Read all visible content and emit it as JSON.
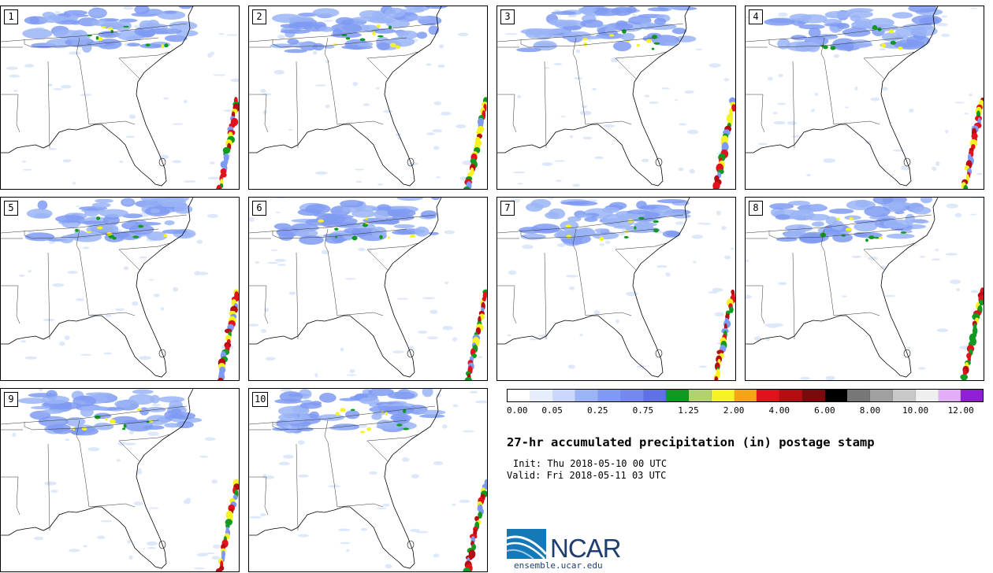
{
  "title": "27-hr accumulated precipitation (in) postage stamp",
  "init_text": "Init: Thu 2018-05-10 00 UTC",
  "valid_text": "Valid: Fri 2018-05-11 03 UTC",
  "members": [
    "1",
    "2",
    "3",
    "4",
    "5",
    "6",
    "7",
    "8",
    "9",
    "10"
  ],
  "colorbar": {
    "colors": [
      "#ffffff",
      "#e6eefc",
      "#c9d8fa",
      "#9ab4f6",
      "#7f9af2",
      "#7389ec",
      "#6070e6",
      "#109a21",
      "#b2d170",
      "#f6f325",
      "#f5a413",
      "#e2121c",
      "#b80c13",
      "#7b0a0c",
      "#000000",
      "#777777",
      "#a0a0a0",
      "#c8c8c8",
      "#efefef",
      "#e2aef5",
      "#8f1ed8"
    ],
    "labels": [
      "0.00",
      "0.05",
      "0.25",
      "0.75",
      "1.25",
      "2.00",
      "4.00",
      "6.00",
      "8.00",
      "10.00",
      "12.00"
    ]
  },
  "logo": {
    "name": "NCAR",
    "url": "ensemble.ucar.edu"
  }
}
